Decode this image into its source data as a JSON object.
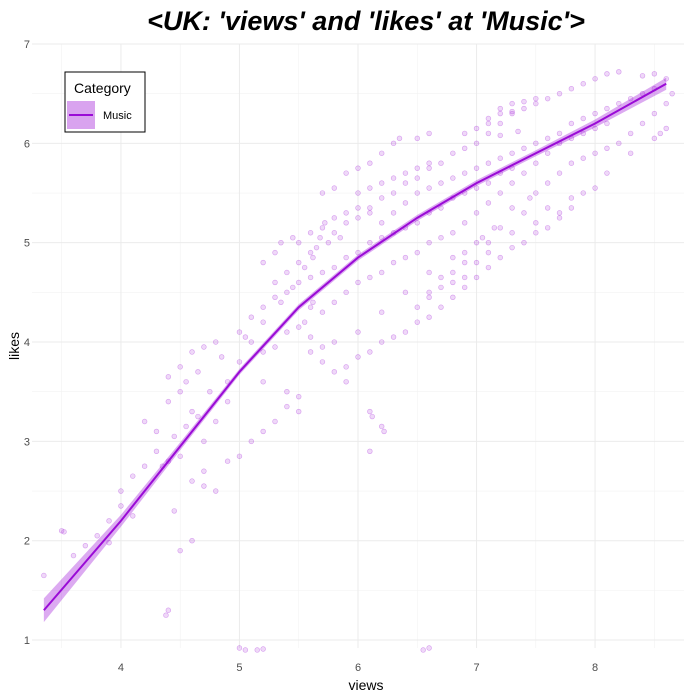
{
  "chart_data": {
    "type": "scatter",
    "title": "<UK: 'views' and 'likes' at 'Music'>",
    "xlabel": "views",
    "ylabel": "likes",
    "xlim": [
      3.25,
      8.75
    ],
    "ylim": [
      0.92,
      7.0
    ],
    "x_ticks": [
      4,
      5,
      6,
      7,
      8
    ],
    "x_tick_labels": [
      "4",
      "5",
      "6",
      "7",
      "8"
    ],
    "y_ticks": [
      1,
      2,
      3,
      4,
      5,
      6,
      7
    ],
    "y_tick_labels": [
      "1",
      "2",
      "3",
      "4",
      "5",
      "6",
      "7"
    ],
    "grid": true,
    "legend": {
      "title": "Category",
      "placement": "top-left",
      "entries": [
        {
          "label": "Music",
          "color": "#9a0bd6"
        }
      ]
    },
    "series": [
      {
        "name": "Music",
        "color": "#9a0bd6",
        "point_opacity": 0.16,
        "points": [
          [
            3.35,
            1.65
          ],
          [
            3.5,
            2.1
          ],
          [
            3.52,
            2.09
          ],
          [
            3.9,
            1.98
          ],
          [
            4.1,
            2.25
          ],
          [
            4.38,
            1.25
          ],
          [
            4.4,
            1.3
          ],
          [
            4.45,
            2.3
          ],
          [
            4.5,
            1.9
          ],
          [
            4.6,
            2.0
          ],
          [
            4.7,
            2.55
          ],
          [
            4.8,
            2.5
          ],
          [
            5.55,
            4.2
          ],
          [
            5.6,
            4.35
          ],
          [
            5.62,
            4.4
          ],
          [
            5.7,
            3.8
          ],
          [
            5.8,
            4.0
          ],
          [
            5.9,
            3.6
          ],
          [
            6.1,
            3.3
          ],
          [
            6.12,
            3.25
          ],
          [
            6.2,
            3.15
          ],
          [
            6.22,
            3.1
          ],
          [
            6.1,
            2.9
          ],
          [
            5.5,
            3.3
          ],
          [
            5.4,
            3.5
          ],
          [
            5.2,
            3.6
          ],
          [
            5.0,
            3.8
          ],
          [
            4.9,
            3.4
          ],
          [
            4.8,
            3.2
          ],
          [
            4.7,
            3.0
          ],
          [
            4.65,
            3.7
          ],
          [
            4.85,
            3.85
          ],
          [
            5.05,
            4.05
          ],
          [
            5.2,
            4.2
          ],
          [
            5.35,
            4.4
          ],
          [
            5.45,
            4.55
          ],
          [
            5.55,
            4.75
          ],
          [
            5.62,
            4.85
          ],
          [
            5.68,
            5.05
          ],
          [
            5.72,
            5.2
          ],
          [
            5.8,
            5.25
          ],
          [
            5.9,
            5.3
          ],
          [
            6.0,
            5.35
          ],
          [
            6.1,
            5.35
          ],
          [
            6.2,
            5.45
          ],
          [
            6.3,
            5.5
          ],
          [
            6.4,
            5.6
          ],
          [
            6.5,
            5.65
          ],
          [
            6.6,
            5.75
          ],
          [
            6.7,
            5.8
          ],
          [
            6.8,
            5.9
          ],
          [
            6.9,
            5.95
          ],
          [
            7.0,
            6.0
          ],
          [
            7.1,
            6.1
          ],
          [
            7.2,
            6.2
          ],
          [
            7.3,
            6.3
          ],
          [
            7.4,
            6.35
          ],
          [
            7.5,
            6.4
          ],
          [
            7.6,
            6.45
          ],
          [
            7.7,
            6.5
          ],
          [
            7.8,
            6.55
          ],
          [
            7.9,
            6.6
          ],
          [
            8.0,
            6.65
          ],
          [
            8.1,
            6.7
          ],
          [
            8.2,
            6.72
          ],
          [
            8.4,
            6.68
          ],
          [
            8.5,
            6.7
          ],
          [
            8.6,
            6.65
          ],
          [
            7.1,
            6.25
          ],
          [
            7.2,
            6.3
          ],
          [
            7.3,
            6.32
          ],
          [
            7.2,
            6.08
          ],
          [
            7.35,
            6.12
          ],
          [
            5.1,
            4.0
          ],
          [
            5.2,
            3.9
          ],
          [
            5.3,
            3.95
          ],
          [
            5.4,
            4.1
          ],
          [
            5.5,
            4.15
          ],
          [
            5.6,
            4.05
          ],
          [
            5.7,
            4.3
          ],
          [
            5.8,
            4.4
          ],
          [
            5.9,
            4.5
          ],
          [
            6.0,
            4.6
          ],
          [
            6.1,
            4.65
          ],
          [
            6.2,
            4.7
          ],
          [
            6.3,
            4.8
          ],
          [
            6.4,
            4.85
          ],
          [
            6.5,
            4.9
          ],
          [
            6.6,
            5.0
          ],
          [
            6.7,
            5.05
          ],
          [
            6.8,
            5.1
          ],
          [
            6.9,
            5.2
          ],
          [
            7.0,
            5.3
          ],
          [
            7.1,
            5.4
          ],
          [
            7.2,
            5.5
          ],
          [
            7.3,
            5.6
          ],
          [
            7.4,
            5.7
          ],
          [
            7.5,
            5.8
          ],
          [
            7.6,
            5.9
          ],
          [
            7.7,
            6.0
          ],
          [
            7.8,
            6.05
          ],
          [
            7.9,
            6.1
          ],
          [
            8.0,
            6.15
          ],
          [
            8.1,
            6.2
          ],
          [
            6.0,
            4.1
          ],
          [
            6.2,
            4.3
          ],
          [
            6.4,
            4.5
          ],
          [
            6.6,
            4.7
          ],
          [
            6.8,
            4.85
          ],
          [
            7.0,
            5.0
          ],
          [
            7.2,
            5.15
          ],
          [
            7.4,
            5.3
          ],
          [
            7.6,
            5.35
          ],
          [
            7.8,
            5.45
          ],
          [
            7.9,
            5.5
          ],
          [
            8.0,
            5.55
          ],
          [
            6.8,
            4.7
          ],
          [
            6.9,
            4.8
          ],
          [
            7.1,
            5.0
          ],
          [
            7.3,
            5.1
          ],
          [
            7.5,
            5.2
          ],
          [
            7.7,
            5.3
          ],
          [
            8.1,
            5.7
          ],
          [
            8.3,
            5.9
          ],
          [
            8.5,
            6.05
          ],
          [
            8.55,
            6.1
          ],
          [
            8.6,
            6.15
          ],
          [
            6.1,
            5.8
          ],
          [
            6.2,
            5.9
          ],
          [
            6.3,
            6.0
          ],
          [
            6.35,
            6.05
          ],
          [
            6.5,
            6.05
          ],
          [
            6.6,
            6.1
          ],
          [
            5.8,
            5.55
          ],
          [
            5.7,
            5.5
          ],
          [
            5.9,
            5.7
          ],
          [
            6.0,
            5.75
          ],
          [
            4.2,
            3.2
          ],
          [
            4.3,
            3.1
          ],
          [
            4.4,
            3.4
          ],
          [
            4.5,
            3.5
          ],
          [
            4.55,
            3.6
          ],
          [
            4.6,
            3.3
          ],
          [
            4.75,
            3.5
          ],
          [
            4.9,
            3.6
          ],
          [
            4.35,
            2.75
          ],
          [
            4.4,
            2.8
          ],
          [
            4.5,
            2.85
          ],
          [
            4.6,
            2.6
          ],
          [
            4.7,
            2.7
          ],
          [
            4.9,
            2.8
          ],
          [
            5.0,
            2.85
          ],
          [
            5.1,
            3.0
          ],
          [
            5.2,
            3.1
          ],
          [
            5.3,
            3.2
          ],
          [
            5.4,
            3.35
          ],
          [
            5.5,
            3.45
          ],
          [
            4.0,
            2.5
          ],
          [
            4.1,
            2.65
          ],
          [
            4.2,
            2.75
          ],
          [
            4.3,
            2.9
          ],
          [
            4.45,
            3.05
          ],
          [
            4.55,
            3.15
          ],
          [
            4.65,
            3.25
          ],
          [
            3.6,
            1.85
          ],
          [
            3.7,
            1.95
          ],
          [
            3.8,
            2.05
          ],
          [
            3.9,
            2.2
          ],
          [
            4.0,
            2.35
          ],
          [
            5.0,
            4.1
          ],
          [
            5.1,
            4.25
          ],
          [
            5.2,
            4.35
          ],
          [
            5.3,
            4.45
          ],
          [
            5.4,
            4.5
          ],
          [
            5.5,
            4.6
          ],
          [
            5.6,
            4.65
          ],
          [
            5.7,
            4.7
          ],
          [
            5.8,
            4.75
          ],
          [
            5.9,
            4.85
          ],
          [
            6.0,
            4.9
          ],
          [
            6.1,
            5.0
          ],
          [
            6.2,
            5.05
          ],
          [
            6.3,
            5.1
          ],
          [
            6.4,
            5.15
          ],
          [
            6.5,
            5.2
          ],
          [
            6.6,
            5.3
          ],
          [
            6.7,
            5.35
          ],
          [
            6.8,
            5.45
          ],
          [
            6.9,
            5.5
          ],
          [
            7.0,
            5.55
          ],
          [
            7.1,
            5.6
          ],
          [
            7.2,
            5.7
          ],
          [
            7.3,
            5.75
          ],
          [
            5.5,
            5.0
          ],
          [
            5.6,
            5.1
          ],
          [
            5.7,
            5.15
          ],
          [
            5.8,
            5.1
          ],
          [
            5.9,
            5.2
          ],
          [
            6.0,
            5.25
          ],
          [
            6.1,
            5.3
          ],
          [
            6.2,
            5.2
          ],
          [
            6.3,
            5.3
          ],
          [
            6.4,
            5.4
          ],
          [
            6.5,
            5.5
          ],
          [
            6.6,
            5.55
          ],
          [
            6.7,
            5.6
          ],
          [
            6.8,
            5.65
          ],
          [
            6.9,
            5.7
          ],
          [
            7.0,
            5.75
          ],
          [
            7.1,
            5.8
          ],
          [
            7.2,
            5.85
          ],
          [
            7.3,
            5.9
          ],
          [
            7.4,
            5.95
          ],
          [
            7.5,
            6.0
          ],
          [
            7.6,
            6.05
          ],
          [
            7.7,
            6.1
          ],
          [
            7.8,
            6.2
          ],
          [
            7.9,
            6.25
          ],
          [
            8.0,
            6.3
          ],
          [
            8.1,
            6.35
          ],
          [
            8.2,
            6.4
          ],
          [
            8.3,
            6.45
          ],
          [
            8.4,
            6.5
          ],
          [
            8.5,
            6.55
          ],
          [
            5.6,
            3.9
          ],
          [
            5.7,
            3.95
          ],
          [
            5.8,
            3.7
          ],
          [
            5.9,
            3.75
          ],
          [
            6.0,
            3.85
          ],
          [
            6.1,
            3.9
          ],
          [
            6.2,
            4.0
          ],
          [
            6.3,
            4.05
          ],
          [
            6.4,
            4.1
          ],
          [
            6.5,
            4.2
          ],
          [
            6.6,
            4.25
          ],
          [
            6.7,
            4.35
          ],
          [
            6.8,
            4.45
          ],
          [
            6.9,
            4.55
          ],
          [
            7.0,
            4.65
          ],
          [
            7.1,
            4.75
          ],
          [
            7.2,
            4.85
          ],
          [
            7.3,
            4.95
          ],
          [
            7.4,
            5.0
          ],
          [
            7.5,
            5.1
          ],
          [
            7.6,
            5.15
          ],
          [
            7.7,
            5.25
          ],
          [
            7.8,
            5.35
          ],
          [
            6.5,
            4.35
          ],
          [
            6.6,
            4.45
          ],
          [
            6.7,
            4.55
          ],
          [
            6.8,
            4.6
          ],
          [
            6.9,
            4.65
          ],
          [
            7.0,
            4.8
          ],
          [
            7.1,
            4.9
          ],
          [
            6.6,
            4.5
          ],
          [
            6.7,
            4.65
          ],
          [
            6.9,
            4.9
          ],
          [
            7.05,
            5.05
          ],
          [
            7.15,
            5.15
          ],
          [
            7.3,
            5.35
          ],
          [
            7.45,
            5.45
          ],
          [
            5.3,
            4.6
          ],
          [
            5.4,
            4.7
          ],
          [
            5.5,
            4.8
          ],
          [
            5.6,
            4.9
          ],
          [
            5.65,
            4.95
          ],
          [
            5.75,
            5.0
          ],
          [
            5.85,
            5.05
          ],
          [
            6.0,
            5.5
          ],
          [
            6.1,
            5.55
          ],
          [
            6.2,
            5.6
          ],
          [
            6.3,
            5.65
          ],
          [
            6.4,
            5.7
          ],
          [
            6.5,
            5.75
          ],
          [
            6.6,
            5.8
          ],
          [
            7.5,
            5.5
          ],
          [
            7.6,
            5.6
          ],
          [
            7.7,
            5.7
          ],
          [
            7.8,
            5.8
          ],
          [
            7.9,
            5.85
          ],
          [
            8.0,
            5.9
          ],
          [
            8.1,
            5.95
          ],
          [
            8.2,
            6.0
          ],
          [
            8.3,
            6.1
          ],
          [
            8.4,
            6.2
          ],
          [
            8.5,
            6.3
          ],
          [
            8.6,
            6.4
          ],
          [
            8.65,
            6.5
          ],
          [
            5.0,
            0.92
          ],
          [
            5.05,
            0.9
          ],
          [
            5.15,
            0.9
          ],
          [
            5.2,
            0.91
          ],
          [
            6.55,
            0.9
          ],
          [
            6.6,
            0.92
          ],
          [
            4.6,
            3.9
          ],
          [
            4.7,
            3.95
          ],
          [
            4.8,
            4.0
          ],
          [
            4.5,
            3.75
          ],
          [
            4.4,
            3.65
          ],
          [
            5.2,
            4.8
          ],
          [
            5.3,
            4.9
          ],
          [
            5.35,
            5.0
          ],
          [
            5.45,
            5.05
          ],
          [
            6.9,
            6.1
          ],
          [
            7.0,
            6.15
          ],
          [
            7.1,
            6.2
          ],
          [
            7.2,
            6.35
          ],
          [
            7.3,
            6.4
          ],
          [
            7.4,
            6.42
          ],
          [
            7.5,
            6.45
          ]
        ]
      }
    ],
    "trend": {
      "color": "#9a0bd6",
      "points": [
        [
          3.35,
          1.3
        ],
        [
          4.0,
          2.2
        ],
        [
          4.5,
          2.95
        ],
        [
          5.0,
          3.7
        ],
        [
          5.5,
          4.35
        ],
        [
          6.0,
          4.85
        ],
        [
          6.5,
          5.25
        ],
        [
          7.0,
          5.6
        ],
        [
          7.5,
          5.9
        ],
        [
          8.0,
          6.2
        ],
        [
          8.6,
          6.6
        ]
      ],
      "band_halfwidth": [
        0.12,
        0.06,
        0.04,
        0.03,
        0.03,
        0.03,
        0.03,
        0.03,
        0.03,
        0.04,
        0.06
      ]
    }
  }
}
